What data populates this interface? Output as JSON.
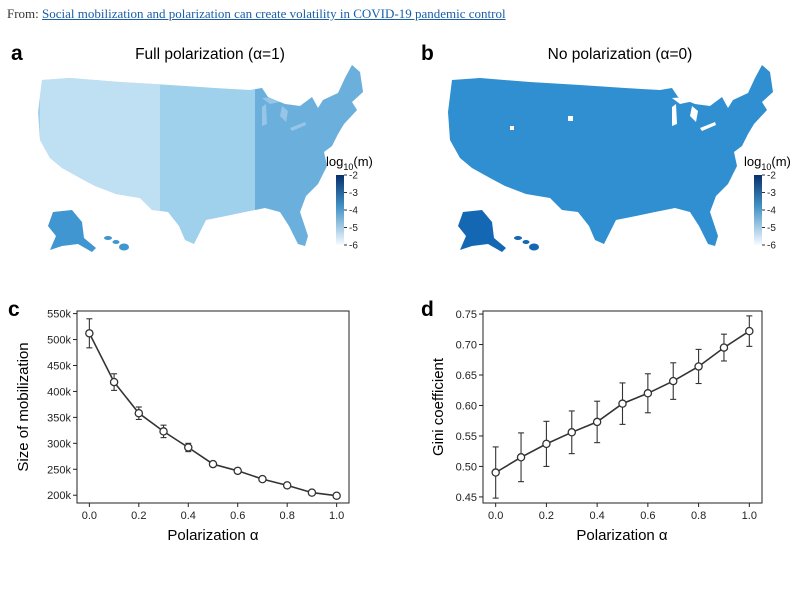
{
  "source": {
    "prefix": "From:",
    "link_text": "Social mobilization and polarization can create volatility in COVID-19 pandemic control"
  },
  "maps": [
    {
      "letter": "a",
      "title": "Full polarization (α=1)",
      "colorbar_label": "log",
      "colorbar_sub": "10",
      "colorbar_suffix": "(m)",
      "colorbar_ticks": [
        "-2",
        "-3",
        "-4",
        "-5",
        "-6"
      ],
      "fill_light": "#9fd0ec",
      "fill_dark": "#3f96d1"
    },
    {
      "letter": "b",
      "title": "No polarization (α=0)",
      "colorbar_label": "log",
      "colorbar_sub": "10",
      "colorbar_suffix": "(m)",
      "colorbar_ticks": [
        "-2",
        "-3",
        "-4",
        "-5",
        "-6"
      ],
      "fill_light": "#2f8fd0",
      "fill_dark": "#1467b3"
    }
  ],
  "colors": {
    "line": "#333333",
    "colorbar_top": "#08306b",
    "colorbar_mid": "#4292c6",
    "colorbar_bottom": "#f7fbff",
    "lake": "#ffffff"
  },
  "chart_data": [
    {
      "panel": "c",
      "type": "line",
      "xlabel": "Polarization α",
      "ylabel": "Size of mobilization",
      "xlim": [
        -0.05,
        1.05
      ],
      "ylim": [
        185000,
        555000
      ],
      "xticks": [
        0.0,
        0.2,
        0.4,
        0.6,
        0.8,
        1.0
      ],
      "xtick_labels": [
        "0.0",
        "0.2",
        "0.4",
        "0.6",
        "0.8",
        "1.0"
      ],
      "yticks": [
        200000,
        250000,
        300000,
        350000,
        400000,
        450000,
        500000,
        550000
      ],
      "ytick_labels": [
        "200k",
        "250k",
        "300k",
        "350k",
        "400k",
        "450k",
        "500k",
        "550k"
      ],
      "grid": false,
      "series": [
        {
          "x": [
            0.0,
            0.1,
            0.2,
            0.3,
            0.4,
            0.5,
            0.6,
            0.7,
            0.8,
            0.9,
            1.0
          ],
          "y": [
            512000,
            418000,
            358000,
            323000,
            292000,
            260000,
            247000,
            231000,
            219000,
            205000,
            199000
          ],
          "err": [
            28000,
            16000,
            12000,
            12000,
            8000,
            5000,
            5000,
            4000,
            4000,
            3000,
            3000
          ]
        }
      ]
    },
    {
      "panel": "d",
      "type": "line",
      "xlabel": "Polarization α",
      "ylabel": "Gini coefficient",
      "xlim": [
        -0.05,
        1.05
      ],
      "ylim": [
        0.44,
        0.755
      ],
      "xticks": [
        0.0,
        0.2,
        0.4,
        0.6,
        0.8,
        1.0
      ],
      "xtick_labels": [
        "0.0",
        "0.2",
        "0.4",
        "0.6",
        "0.8",
        "1.0"
      ],
      "yticks": [
        0.45,
        0.5,
        0.55,
        0.6,
        0.65,
        0.7,
        0.75
      ],
      "ytick_labels": [
        "0.45",
        "0.50",
        "0.55",
        "0.60",
        "0.65",
        "0.70",
        "0.75"
      ],
      "grid": false,
      "series": [
        {
          "x": [
            0.0,
            0.1,
            0.2,
            0.3,
            0.4,
            0.5,
            0.6,
            0.7,
            0.8,
            0.9,
            1.0
          ],
          "y": [
            0.49,
            0.515,
            0.537,
            0.556,
            0.573,
            0.603,
            0.62,
            0.64,
            0.664,
            0.695,
            0.722
          ],
          "err": [
            0.042,
            0.04,
            0.037,
            0.035,
            0.034,
            0.034,
            0.032,
            0.03,
            0.028,
            0.022,
            0.025
          ]
        }
      ]
    }
  ]
}
